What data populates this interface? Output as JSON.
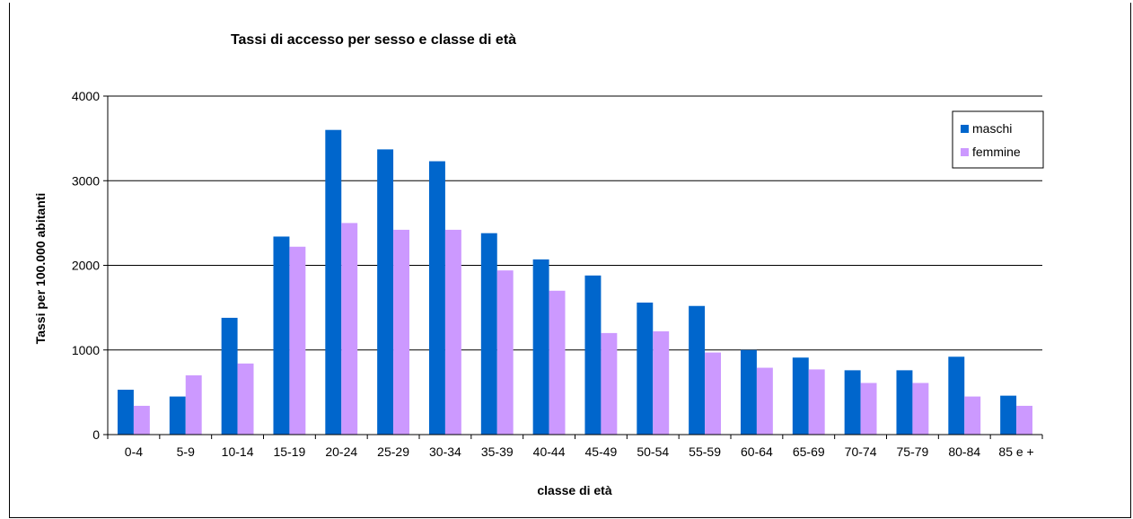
{
  "chart_data": {
    "type": "bar",
    "title": "Tassi di accesso per sesso e classe di età",
    "xlabel": "classe di età",
    "ylabel": "Tassi per 100.000 abitanti",
    "ylim": [
      0,
      4000
    ],
    "yticks": [
      "0",
      "1000",
      "2000",
      "3000",
      "4000"
    ],
    "grid": true,
    "legend_position": "top-right",
    "categories": [
      "0-4",
      "5-9",
      "10-14",
      "15-19",
      "20-24",
      "25-29",
      "30-34",
      "35-39",
      "40-44",
      "45-49",
      "50-54",
      "55-59",
      "60-64",
      "65-69",
      "70-74",
      "75-79",
      "80-84",
      "85 e +"
    ],
    "series": [
      {
        "name": "maschi",
        "color": "#0066cc",
        "values": [
          530,
          450,
          1380,
          2340,
          3600,
          3370,
          3230,
          2380,
          2070,
          1880,
          1560,
          1520,
          1000,
          910,
          760,
          760,
          920,
          460
        ]
      },
      {
        "name": "femmine",
        "color": "#cc99ff",
        "values": [
          340,
          700,
          840,
          2220,
          2500,
          2420,
          2420,
          1940,
          1700,
          1200,
          1220,
          970,
          790,
          770,
          610,
          610,
          450,
          340
        ]
      }
    ]
  }
}
